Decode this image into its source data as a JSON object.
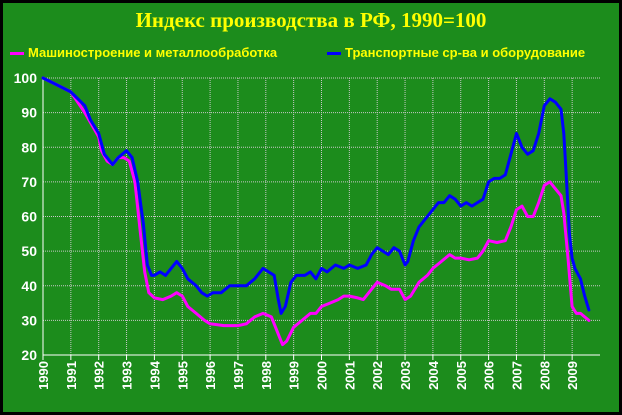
{
  "chart_data": {
    "type": "line",
    "title": "Индекс производства в РФ, 1990=100",
    "xlabel": "",
    "ylabel": "",
    "ylim": [
      20,
      100
    ],
    "yticks": [
      20,
      30,
      40,
      50,
      60,
      70,
      80,
      90,
      100
    ],
    "xticks": [
      "1990",
      "1991",
      "1992",
      "1993",
      "1994",
      "1995",
      "1996",
      "1997",
      "1998",
      "1999",
      "2000",
      "2001",
      "2002",
      "2003",
      "2004",
      "2005",
      "2006",
      "2007",
      "2008",
      "2009"
    ],
    "grid": true,
    "legend_position": "top",
    "series": [
      {
        "name": "Машиностроение и металлообработка",
        "color": "#ff00ff",
        "points": [
          [
            1990.0,
            100
          ],
          [
            1990.5,
            98
          ],
          [
            1991.0,
            96
          ],
          [
            1991.5,
            90
          ],
          [
            1992.0,
            83
          ],
          [
            1992.1,
            79
          ],
          [
            1992.3,
            76
          ],
          [
            1992.5,
            75
          ],
          [
            1992.7,
            77
          ],
          [
            1992.9,
            77
          ],
          [
            1993.1,
            76
          ],
          [
            1993.3,
            70
          ],
          [
            1993.5,
            55
          ],
          [
            1993.65,
            44
          ],
          [
            1993.8,
            38
          ],
          [
            1994.0,
            36.5
          ],
          [
            1994.3,
            36
          ],
          [
            1994.6,
            37
          ],
          [
            1994.8,
            38
          ],
          [
            1995.0,
            37
          ],
          [
            1995.2,
            34
          ],
          [
            1995.5,
            32
          ],
          [
            1995.8,
            30
          ],
          [
            1996.0,
            29
          ],
          [
            1996.5,
            28.5
          ],
          [
            1997.0,
            28.5
          ],
          [
            1997.3,
            29
          ],
          [
            1997.6,
            31
          ],
          [
            1997.9,
            32
          ],
          [
            1998.2,
            31
          ],
          [
            1998.45,
            26
          ],
          [
            1998.6,
            23
          ],
          [
            1998.75,
            24
          ],
          [
            1999.0,
            28
          ],
          [
            1999.3,
            30
          ],
          [
            1999.6,
            32
          ],
          [
            1999.8,
            32
          ],
          [
            2000.0,
            34
          ],
          [
            2000.3,
            35
          ],
          [
            2000.6,
            36
          ],
          [
            2000.8,
            37
          ],
          [
            2001.0,
            37
          ],
          [
            2001.3,
            36.5
          ],
          [
            2001.5,
            36
          ],
          [
            2001.8,
            39
          ],
          [
            2002.0,
            41
          ],
          [
            2002.3,
            40
          ],
          [
            2002.5,
            39
          ],
          [
            2002.8,
            39
          ],
          [
            2003.0,
            36
          ],
          [
            2003.2,
            37
          ],
          [
            2003.5,
            41
          ],
          [
            2003.8,
            43
          ],
          [
            2004.0,
            45
          ],
          [
            2004.3,
            47
          ],
          [
            2004.6,
            49
          ],
          [
            2004.8,
            48
          ],
          [
            2005.0,
            48
          ],
          [
            2005.3,
            47.5
          ],
          [
            2005.6,
            48
          ],
          [
            2005.8,
            50
          ],
          [
            2006.0,
            53
          ],
          [
            2006.3,
            52.5
          ],
          [
            2006.6,
            53
          ],
          [
            2006.8,
            57
          ],
          [
            2007.0,
            62
          ],
          [
            2007.2,
            63
          ],
          [
            2007.4,
            60
          ],
          [
            2007.6,
            60
          ],
          [
            2007.8,
            64
          ],
          [
            2008.0,
            69
          ],
          [
            2008.2,
            70
          ],
          [
            2008.4,
            68
          ],
          [
            2008.6,
            66
          ],
          [
            2008.7,
            61
          ],
          [
            2008.85,
            48
          ],
          [
            2009.0,
            34
          ],
          [
            2009.15,
            32
          ],
          [
            2009.3,
            32
          ],
          [
            2009.45,
            31
          ],
          [
            2009.6,
            30
          ]
        ]
      },
      {
        "name": "Транспортные ср-ва и оборудование",
        "color": "#0000ff",
        "points": [
          [
            1990.0,
            100
          ],
          [
            1990.5,
            98
          ],
          [
            1991.0,
            96
          ],
          [
            1991.5,
            92
          ],
          [
            1991.7,
            88
          ],
          [
            1992.0,
            84
          ],
          [
            1992.2,
            78
          ],
          [
            1992.5,
            75
          ],
          [
            1992.7,
            77
          ],
          [
            1993.0,
            79
          ],
          [
            1993.2,
            77
          ],
          [
            1993.4,
            70
          ],
          [
            1993.6,
            58
          ],
          [
            1993.75,
            46
          ],
          [
            1993.9,
            43
          ],
          [
            1994.0,
            43
          ],
          [
            1994.2,
            44
          ],
          [
            1994.4,
            43
          ],
          [
            1994.6,
            45
          ],
          [
            1994.8,
            47
          ],
          [
            1995.0,
            45
          ],
          [
            1995.2,
            42
          ],
          [
            1995.5,
            40
          ],
          [
            1995.7,
            38
          ],
          [
            1995.9,
            37
          ],
          [
            1996.1,
            38
          ],
          [
            1996.4,
            38
          ],
          [
            1996.7,
            40
          ],
          [
            1997.0,
            40
          ],
          [
            1997.3,
            40
          ],
          [
            1997.6,
            42
          ],
          [
            1997.9,
            45
          ],
          [
            1998.1,
            44
          ],
          [
            1998.3,
            43
          ],
          [
            1998.45,
            36
          ],
          [
            1998.55,
            32
          ],
          [
            1998.7,
            34
          ],
          [
            1998.9,
            41
          ],
          [
            1999.1,
            43
          ],
          [
            1999.4,
            43
          ],
          [
            1999.6,
            44
          ],
          [
            1999.8,
            42
          ],
          [
            2000.0,
            45
          ],
          [
            2000.2,
            44
          ],
          [
            2000.5,
            46
          ],
          [
            2000.8,
            45
          ],
          [
            2001.0,
            46
          ],
          [
            2001.3,
            45
          ],
          [
            2001.6,
            46
          ],
          [
            2001.8,
            49
          ],
          [
            2002.0,
            51
          ],
          [
            2002.2,
            50
          ],
          [
            2002.4,
            49
          ],
          [
            2002.6,
            51
          ],
          [
            2002.8,
            50
          ],
          [
            2003.0,
            46
          ],
          [
            2003.1,
            47
          ],
          [
            2003.3,
            53
          ],
          [
            2003.5,
            57
          ],
          [
            2003.8,
            60
          ],
          [
            2004.0,
            62
          ],
          [
            2004.2,
            64
          ],
          [
            2004.4,
            64
          ],
          [
            2004.6,
            66
          ],
          [
            2004.8,
            65
          ],
          [
            2005.0,
            63
          ],
          [
            2005.2,
            64
          ],
          [
            2005.4,
            63
          ],
          [
            2005.6,
            64
          ],
          [
            2005.8,
            65
          ],
          [
            2006.0,
            70
          ],
          [
            2006.2,
            71
          ],
          [
            2006.4,
            71
          ],
          [
            2006.6,
            72
          ],
          [
            2006.8,
            78
          ],
          [
            2007.0,
            84
          ],
          [
            2007.2,
            80
          ],
          [
            2007.4,
            78
          ],
          [
            2007.6,
            79
          ],
          [
            2007.8,
            84
          ],
          [
            2008.0,
            92
          ],
          [
            2008.2,
            94
          ],
          [
            2008.4,
            93
          ],
          [
            2008.6,
            91
          ],
          [
            2008.7,
            84
          ],
          [
            2008.8,
            70
          ],
          [
            2008.9,
            55
          ],
          [
            2009.0,
            48
          ],
          [
            2009.1,
            45
          ],
          [
            2009.3,
            42
          ],
          [
            2009.45,
            37
          ],
          [
            2009.6,
            33
          ]
        ]
      }
    ]
  }
}
